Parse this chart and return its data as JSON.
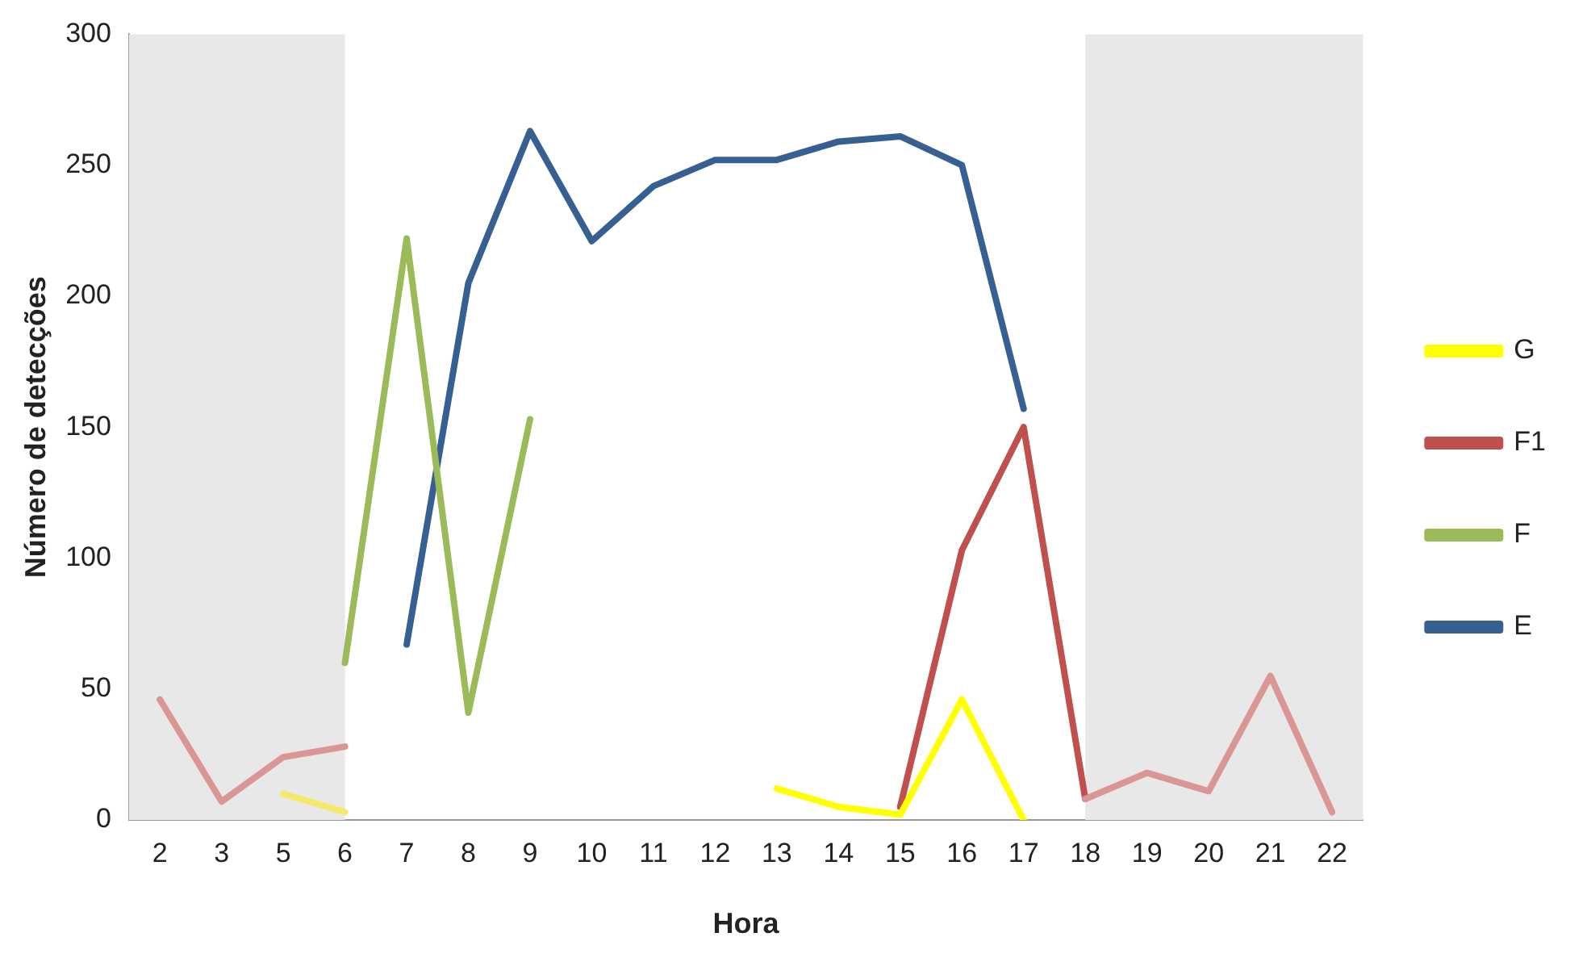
{
  "chart_data": {
    "type": "line",
    "xlabel": "Hora",
    "ylabel": "Número de detecções",
    "categories": [
      "2",
      "3",
      "5",
      "6",
      "7",
      "8",
      "9",
      "10",
      "11",
      "12",
      "13",
      "14",
      "15",
      "16",
      "17",
      "18",
      "19",
      "20",
      "21",
      "22"
    ],
    "series": [
      {
        "color": "#d99694",
        "values": [
          46,
          7,
          24,
          28,
          null,
          null,
          null,
          null,
          null,
          null,
          null,
          null,
          null,
          null,
          null,
          8,
          18,
          11,
          55,
          3
        ]
      },
      {
        "color": "#f5e96b",
        "values": [
          null,
          null,
          10,
          3,
          null,
          null,
          null,
          null,
          null,
          null,
          null,
          null,
          null,
          null,
          null,
          null,
          null,
          null,
          null,
          null
        ]
      },
      {
        "name": "G",
        "color": "#ffff00",
        "values": [
          null,
          null,
          null,
          null,
          null,
          null,
          null,
          null,
          null,
          null,
          12,
          5,
          2,
          46,
          0,
          null,
          null,
          null,
          null,
          null
        ]
      },
      {
        "name": "F1",
        "color": "#c0504d",
        "values": [
          null,
          null,
          null,
          null,
          null,
          null,
          null,
          null,
          null,
          null,
          null,
          null,
          5,
          103,
          150,
          8,
          null,
          null,
          null,
          null
        ]
      },
      {
        "name": "F",
        "color": "#9bbb59",
        "values": [
          null,
          null,
          null,
          60,
          222,
          41,
          153,
          null,
          null,
          null,
          null,
          null,
          null,
          null,
          null,
          null,
          null,
          null,
          null,
          null
        ]
      },
      {
        "name": "E",
        "color": "#376092",
        "values": [
          null,
          null,
          null,
          null,
          67,
          205,
          263,
          221,
          242,
          252,
          252,
          259,
          261,
          250,
          157,
          null,
          null,
          null,
          null,
          null
        ]
      }
    ],
    "ylim": [
      0,
      300
    ],
    "yticks": [
      0,
      50,
      100,
      150,
      200,
      250,
      300
    ],
    "grid": false,
    "legend": "right",
    "marker": "none",
    "bands": [
      {
        "axis": "x",
        "from": "2",
        "to": "6",
        "color": "#e8e8e8"
      },
      {
        "axis": "x",
        "from": "18",
        "to": "22",
        "color": "#e8e8e8"
      }
    ]
  }
}
